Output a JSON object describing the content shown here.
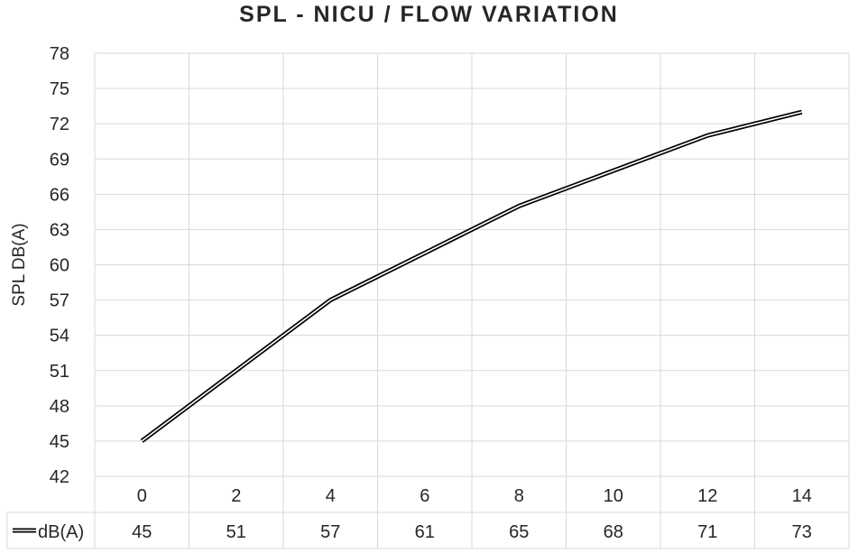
{
  "chart_data": {
    "type": "line",
    "title": "SPL - NICU / FLOW VARIATION",
    "ylabel": "SPL DB(A)",
    "xlabel": "",
    "x": [
      "0",
      "2",
      "4",
      "6",
      "8",
      "10",
      "12",
      "14"
    ],
    "ylim": [
      42,
      78
    ],
    "yticks": [
      "42",
      "45",
      "48",
      "51",
      "54",
      "57",
      "60",
      "63",
      "66",
      "69",
      "72",
      "75",
      "78"
    ],
    "grid": true,
    "legend": "data-table-left",
    "series": [
      {
        "name": "dB(A)",
        "values": [
          45,
          51,
          57,
          61,
          65,
          68,
          71,
          73
        ],
        "value_labels": [
          "45",
          "51",
          "57",
          "61",
          "65",
          "68",
          "71",
          "73"
        ],
        "color": "#000000"
      }
    ]
  }
}
